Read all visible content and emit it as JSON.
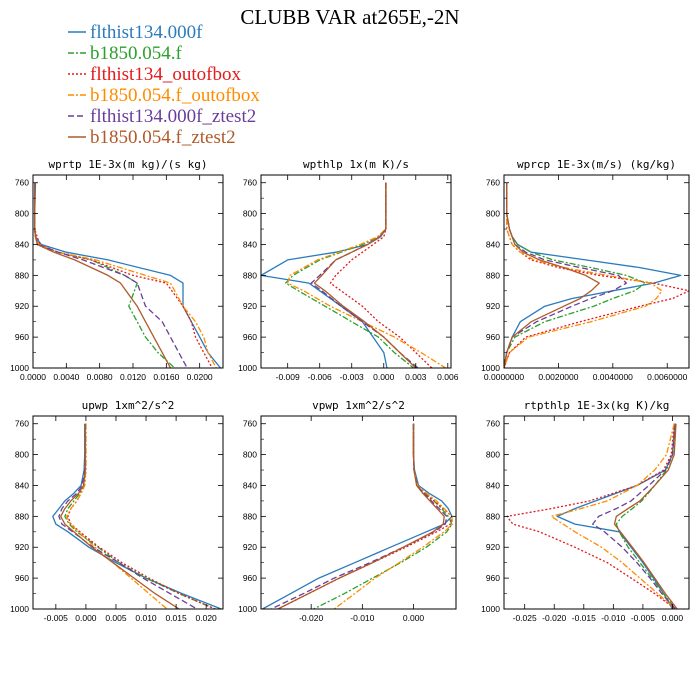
{
  "title": "CLUBB VAR at265E,-2N",
  "legend": [
    {
      "label": "flthist134.000f",
      "color": "#2a7bbd",
      "dash": "none"
    },
    {
      "label": "b1850.054.f",
      "color": "#2ca02c",
      "dash": "6,2,2,2"
    },
    {
      "label": "flthist134_outofbox",
      "color": "#e41a1c",
      "dash": "2,2"
    },
    {
      "label": "b1850.054.f_outofbox",
      "color": "#ff8c00",
      "dash": "6,2,2,2"
    },
    {
      "label": "flthist134.000f_ztest2",
      "color": "#6a3d9a",
      "dash": "6,3"
    },
    {
      "label": "b1850.054.f_ztest2",
      "color": "#b05a2a",
      "dash": "none"
    }
  ],
  "chart_data": [
    {
      "type": "line",
      "title": "wprtp  1E-3x(m kg)/(s kg)",
      "xlim": [
        0,
        0.0228
      ],
      "ylim": [
        1000,
        750
      ],
      "xticks": [
        "0.0000",
        "0.0040",
        "0.0080",
        "0.0120",
        "0.0160",
        "0.0200"
      ],
      "xtick_values": [
        0,
        0.004,
        0.008,
        0.012,
        0.016,
        0.02
      ],
      "yticks": [
        760,
        800,
        840,
        880,
        920,
        960,
        1000
      ],
      "y": [
        760,
        800,
        820,
        830,
        840,
        850,
        860,
        880,
        890,
        920,
        940,
        960,
        980,
        1000
      ],
      "series": [
        {
          "name": "flthist134.000f",
          "values": [
            0.0003,
            0.0002,
            0.0002,
            0.0003,
            0.001,
            0.004,
            0.009,
            0.0165,
            0.018,
            0.018,
            0.019,
            0.02,
            0.021,
            0.0225
          ]
        },
        {
          "name": "b1850.054.f",
          "values": [
            0.0002,
            0.0002,
            0.0002,
            0.0003,
            0.0006,
            0.003,
            0.007,
            0.011,
            0.0125,
            0.0115,
            0.0125,
            0.0135,
            0.015,
            0.017
          ]
        },
        {
          "name": "flthist134_outofbox",
          "values": [
            0.0002,
            0.0002,
            0.0002,
            0.0005,
            0.0008,
            0.003,
            0.007,
            0.012,
            0.016,
            0.018,
            0.019,
            0.0195,
            0.0205,
            0.0215
          ]
        },
        {
          "name": "b1850.054.f_outofbox",
          "values": [
            0.0002,
            0.0002,
            0.0002,
            0.0003,
            0.0007,
            0.003,
            0.0075,
            0.0135,
            0.0165,
            0.018,
            0.0195,
            0.0205,
            0.021,
            0.022
          ]
        },
        {
          "name": "flthist134.000f_ztest2",
          "values": [
            0.0002,
            0.0002,
            0.0002,
            0.0003,
            0.0006,
            0.003,
            0.006,
            0.011,
            0.0125,
            0.0135,
            0.0155,
            0.0165,
            0.0175,
            0.0185
          ]
        },
        {
          "name": "b1850.054.f_ztest2",
          "values": [
            0.0002,
            0.0002,
            0.0002,
            0.0003,
            0.0005,
            0.0025,
            0.005,
            0.009,
            0.0105,
            0.0125,
            0.0135,
            0.0145,
            0.0155,
            0.0165
          ]
        }
      ]
    },
    {
      "type": "line",
      "title": "wpthlp  1x(m K)/s",
      "xlim": [
        -0.0115,
        0.0063
      ],
      "ylim": [
        1000,
        750
      ],
      "xticks": [
        "-0.009",
        "-0.006",
        "-0.003",
        "0.000",
        "0.003",
        "0.006"
      ],
      "xtick_values": [
        -0.009,
        -0.006,
        -0.003,
        0,
        0.003,
        0.006
      ],
      "yticks": [
        760,
        800,
        840,
        880,
        920,
        960,
        1000
      ],
      "y": [
        760,
        800,
        820,
        830,
        840,
        850,
        860,
        880,
        890,
        900,
        920,
        940,
        960,
        980,
        1000
      ],
      "series": [
        {
          "name": "flthist134.000f",
          "values": [
            0.0002,
            0.0002,
            0.0002,
            -0.0003,
            -0.0015,
            -0.0045,
            -0.009,
            -0.0115,
            -0.007,
            -0.006,
            -0.004,
            -0.002,
            -0.001,
            0.0,
            0.0003
          ]
        },
        {
          "name": "b1850.054.f",
          "values": [
            0.0002,
            0.0002,
            0.0002,
            -0.0005,
            -0.002,
            -0.004,
            -0.006,
            -0.0085,
            -0.0092,
            -0.008,
            -0.0055,
            -0.003,
            -0.0005,
            0.001,
            0.0028
          ]
        },
        {
          "name": "flthist134_outofbox",
          "values": [
            0.0002,
            0.0002,
            0.0002,
            0.0,
            -0.001,
            -0.002,
            -0.003,
            -0.0045,
            -0.005,
            -0.004,
            -0.002,
            -0.0005,
            0.0015,
            0.003,
            0.0045
          ]
        },
        {
          "name": "b1850.054.f_outofbox",
          "values": [
            0.0002,
            0.0002,
            0.0002,
            -0.0006,
            -0.0022,
            -0.0042,
            -0.0062,
            -0.0088,
            -0.009,
            -0.0075,
            -0.005,
            -0.002,
            0.001,
            0.0035,
            0.0058
          ]
        },
        {
          "name": "flthist134.000f_ztest2",
          "values": [
            0.0002,
            0.0002,
            0.0002,
            -0.0004,
            -0.0016,
            -0.003,
            -0.0045,
            -0.006,
            -0.0068,
            -0.0058,
            -0.004,
            -0.002,
            0.0,
            0.0015,
            0.0032
          ]
        },
        {
          "name": "b1850.054.f_ztest2",
          "values": [
            0.0002,
            0.0002,
            0.0002,
            -0.0004,
            -0.0015,
            -0.003,
            -0.0045,
            -0.0058,
            -0.0065,
            -0.0055,
            -0.0038,
            -0.0018,
            0.0,
            0.0015,
            0.003
          ]
        }
      ]
    },
    {
      "type": "line",
      "title": "wprcp  1E-3x(m/s) (kg/kg)",
      "xlim": [
        0,
        0.0068
      ],
      "ylim": [
        1000,
        750
      ],
      "xticks": [
        "0.0000000",
        "0.0020000",
        "0.0040000",
        "0.0060000"
      ],
      "xtick_values": [
        0,
        0.002,
        0.004,
        0.006
      ],
      "yticks": [
        760,
        800,
        840,
        880,
        920,
        960,
        1000
      ],
      "y": [
        760,
        800,
        820,
        830,
        840,
        850,
        860,
        870,
        880,
        890,
        900,
        910,
        920,
        940,
        960,
        980,
        1000
      ],
      "series": [
        {
          "name": "flthist134.000f",
          "values": [
            0.0001,
            0.0001,
            0.0002,
            0.0003,
            0.0005,
            0.001,
            0.003,
            0.005,
            0.0065,
            0.0055,
            0.004,
            0.0025,
            0.0015,
            0.0006,
            0.0003,
            0.0001,
            0.0
          ]
        },
        {
          "name": "b1850.054.f",
          "values": [
            0.0001,
            0.0001,
            0.0002,
            0.0003,
            0.0005,
            0.001,
            0.0018,
            0.0032,
            0.0045,
            0.0052,
            0.0048,
            0.004,
            0.0033,
            0.0015,
            0.0004,
            0.0001,
            0.0
          ]
        },
        {
          "name": "flthist134_outofbox",
          "values": [
            0.0001,
            0.0001,
            0.0001,
            0.0002,
            0.0003,
            0.0006,
            0.001,
            0.002,
            0.0035,
            0.0055,
            0.0068,
            0.0062,
            0.005,
            0.0028,
            0.0008,
            0.0002,
            0.0
          ]
        },
        {
          "name": "b1850.054.f_outofbox",
          "values": [
            0.0001,
            0.0001,
            0.0001,
            0.0002,
            0.0003,
            0.0006,
            0.0011,
            0.0022,
            0.0038,
            0.0054,
            0.0058,
            0.0056,
            0.0052,
            0.0032,
            0.0009,
            0.0002,
            0.0
          ]
        },
        {
          "name": "flthist134.000f_ztest2",
          "values": [
            0.0001,
            0.0001,
            0.0002,
            0.0003,
            0.0004,
            0.0008,
            0.0015,
            0.0028,
            0.0042,
            0.0045,
            0.004,
            0.0032,
            0.0025,
            0.0012,
            0.0003,
            0.0001,
            0.0
          ]
        },
        {
          "name": "b1850.054.f_ztest2",
          "values": [
            0.0001,
            0.0001,
            0.0002,
            0.0003,
            0.0004,
            0.0007,
            0.0013,
            0.0022,
            0.003,
            0.0035,
            0.0032,
            0.0028,
            0.0022,
            0.001,
            0.0003,
            0.0001,
            0.0
          ]
        }
      ]
    },
    {
      "type": "line",
      "title": "upwp  1xm^2/s^2",
      "xlim": [
        -0.0088,
        0.0228
      ],
      "ylim": [
        1000,
        750
      ],
      "xticks": [
        "-0.005",
        "0.000",
        "0.005",
        "0.010",
        "0.015",
        "0.020"
      ],
      "xtick_values": [
        -0.005,
        0,
        0.005,
        0.01,
        0.015,
        0.02
      ],
      "yticks": [
        760,
        800,
        840,
        880,
        920,
        960,
        1000
      ],
      "y": [
        760,
        800,
        820,
        840,
        850,
        860,
        870,
        880,
        890,
        900,
        920,
        940,
        960,
        980,
        1000
      ],
      "series": [
        {
          "name": "flthist134.000f",
          "values": [
            -0.0002,
            -0.0002,
            -0.0003,
            -0.0008,
            -0.002,
            -0.0035,
            -0.0045,
            -0.0055,
            -0.005,
            -0.003,
            0.0005,
            0.005,
            0.01,
            0.016,
            0.0225
          ]
        },
        {
          "name": "b1850.054.f",
          "values": [
            0.0,
            0.0,
            0.0,
            -0.0003,
            -0.001,
            -0.002,
            -0.003,
            -0.0035,
            -0.0028,
            -0.0015,
            0.002,
            0.0055,
            0.01,
            0.0155,
            0.0215
          ]
        },
        {
          "name": "flthist134_outofbox",
          "values": [
            0.0,
            0.0,
            0.0,
            -0.0002,
            -0.0008,
            -0.0015,
            -0.0025,
            -0.003,
            -0.0025,
            -0.001,
            0.0022,
            0.006,
            0.0105,
            0.0155,
            0.0215
          ]
        },
        {
          "name": "b1850.054.f_outofbox",
          "values": [
            0.0,
            0.0,
            0.0,
            -0.0002,
            -0.0008,
            -0.0015,
            -0.0025,
            -0.0032,
            -0.0026,
            -0.0012,
            0.0015,
            0.0045,
            0.0075,
            0.0105,
            0.0135
          ]
        },
        {
          "name": "flthist134.000f_ztest2",
          "values": [
            -0.0001,
            -0.0001,
            -0.0002,
            -0.0006,
            -0.0015,
            -0.003,
            -0.004,
            -0.0045,
            -0.004,
            -0.0022,
            0.0012,
            0.0055,
            0.0095,
            0.014,
            0.0185
          ]
        },
        {
          "name": "b1850.054.f_ztest2",
          "values": [
            -0.0001,
            -0.0001,
            -0.0001,
            -0.0004,
            -0.0012,
            -0.0025,
            -0.0035,
            -0.0042,
            -0.0035,
            -0.002,
            0.001,
            0.0045,
            0.008,
            0.0115,
            0.0155
          ]
        }
      ]
    },
    {
      "type": "line",
      "title": "vpwp  1xm^2/s^2",
      "xlim": [
        -0.0298,
        0.0083
      ],
      "ylim": [
        1000,
        750
      ],
      "xticks": [
        "-0.020",
        "-0.010",
        "0.000"
      ],
      "xtick_values": [
        -0.02,
        -0.01,
        0
      ],
      "yticks": [
        760,
        800,
        840,
        880,
        920,
        960,
        1000
      ],
      "y": [
        760,
        800,
        820,
        840,
        850,
        860,
        870,
        880,
        890,
        900,
        920,
        940,
        960,
        980,
        1000
      ],
      "series": [
        {
          "name": "flthist134.000f",
          "values": [
            0.0,
            0.0,
            0.0002,
            0.001,
            0.003,
            0.0055,
            0.0068,
            0.0075,
            0.006,
            0.0025,
            -0.0045,
            -0.0115,
            -0.0185,
            -0.024,
            -0.0295
          ]
        },
        {
          "name": "b1850.054.f",
          "values": [
            0.0,
            0.0,
            0.0001,
            0.0008,
            0.0022,
            0.004,
            0.0055,
            0.0068,
            0.0075,
            0.0065,
            0.0025,
            -0.0025,
            -0.008,
            -0.0135,
            -0.0195
          ]
        },
        {
          "name": "flthist134_outofbox",
          "values": [
            0.0,
            0.0,
            0.0001,
            0.0007,
            0.002,
            0.004,
            0.0058,
            0.0075,
            0.0072,
            0.0045,
            -0.0015,
            -0.008,
            -0.0145,
            -0.0205,
            -0.0265
          ]
        },
        {
          "name": "b1850.054.f_outofbox",
          "values": [
            0.0,
            0.0,
            0.0001,
            0.0008,
            0.0025,
            0.0045,
            0.006,
            0.0075,
            0.0076,
            0.006,
            0.0018,
            -0.0028,
            -0.0075,
            -0.0115,
            -0.0155
          ]
        },
        {
          "name": "flthist134.000f_ztest2",
          "values": [
            0.0,
            0.0,
            0.0001,
            0.0007,
            0.002,
            0.0035,
            0.005,
            0.0065,
            0.0062,
            0.004,
            -0.002,
            -0.0085,
            -0.0155,
            -0.0215,
            -0.0278
          ]
        },
        {
          "name": "b1850.054.f_ztest2",
          "values": [
            0.0,
            0.0,
            0.0001,
            0.0006,
            0.0018,
            0.0032,
            0.0046,
            0.006,
            0.0058,
            0.0038,
            -0.002,
            -0.008,
            -0.0145,
            -0.0205,
            -0.0265
          ]
        }
      ]
    },
    {
      "type": "line",
      "title": "rtpthlp  1E-3x(kg K)/kg",
      "xlim": [
        -0.0285,
        0.0028
      ],
      "ylim": [
        1000,
        750
      ],
      "xticks": [
        "-0.025",
        "-0.020",
        "-0.015",
        "-0.010",
        "-0.005",
        "0.000"
      ],
      "xtick_values": [
        -0.025,
        -0.02,
        -0.015,
        -0.01,
        -0.005,
        0
      ],
      "yticks": [
        760,
        800,
        840,
        880,
        920,
        960,
        1000
      ],
      "y": [
        760,
        800,
        820,
        840,
        860,
        870,
        880,
        890,
        900,
        920,
        940,
        960,
        980,
        1000
      ],
      "series": [
        {
          "name": "flthist134.000f",
          "values": [
            0.0004,
            0.0,
            -0.0012,
            -0.006,
            -0.013,
            -0.0165,
            -0.0195,
            -0.0165,
            -0.009,
            -0.007,
            -0.005,
            -0.0032,
            -0.0015,
            0.0
          ]
        },
        {
          "name": "b1850.054.f",
          "values": [
            0.0004,
            0.0,
            -0.001,
            -0.003,
            -0.0052,
            -0.0068,
            -0.0085,
            -0.0095,
            -0.009,
            -0.0075,
            -0.0055,
            -0.0035,
            -0.0015,
            0.0005
          ]
        },
        {
          "name": "flthist134_outofbox",
          "values": [
            0.0003,
            -0.0002,
            -0.0015,
            -0.006,
            -0.014,
            -0.0205,
            -0.028,
            -0.027,
            -0.0225,
            -0.0165,
            -0.011,
            -0.007,
            -0.003,
            0.0005
          ]
        },
        {
          "name": "b1850.054.f_outofbox",
          "values": [
            0.0003,
            -0.001,
            -0.003,
            -0.006,
            -0.011,
            -0.0155,
            -0.0205,
            -0.0185,
            -0.0165,
            -0.012,
            -0.0085,
            -0.0055,
            -0.0025,
            0.0005
          ]
        },
        {
          "name": "flthist134.000f_ztest2",
          "values": [
            0.0005,
            0.0,
            -0.0012,
            -0.004,
            -0.007,
            -0.0095,
            -0.0125,
            -0.0135,
            -0.0115,
            -0.0085,
            -0.006,
            -0.0038,
            -0.0018,
            0.0005
          ]
        },
        {
          "name": "b1850.054.f_ztest2",
          "values": [
            0.0006,
            0.0003,
            -0.0007,
            -0.003,
            -0.0055,
            -0.0075,
            -0.0095,
            -0.0098,
            -0.0088,
            -0.0068,
            -0.0048,
            -0.003,
            -0.0012,
            0.0008
          ]
        }
      ]
    }
  ]
}
